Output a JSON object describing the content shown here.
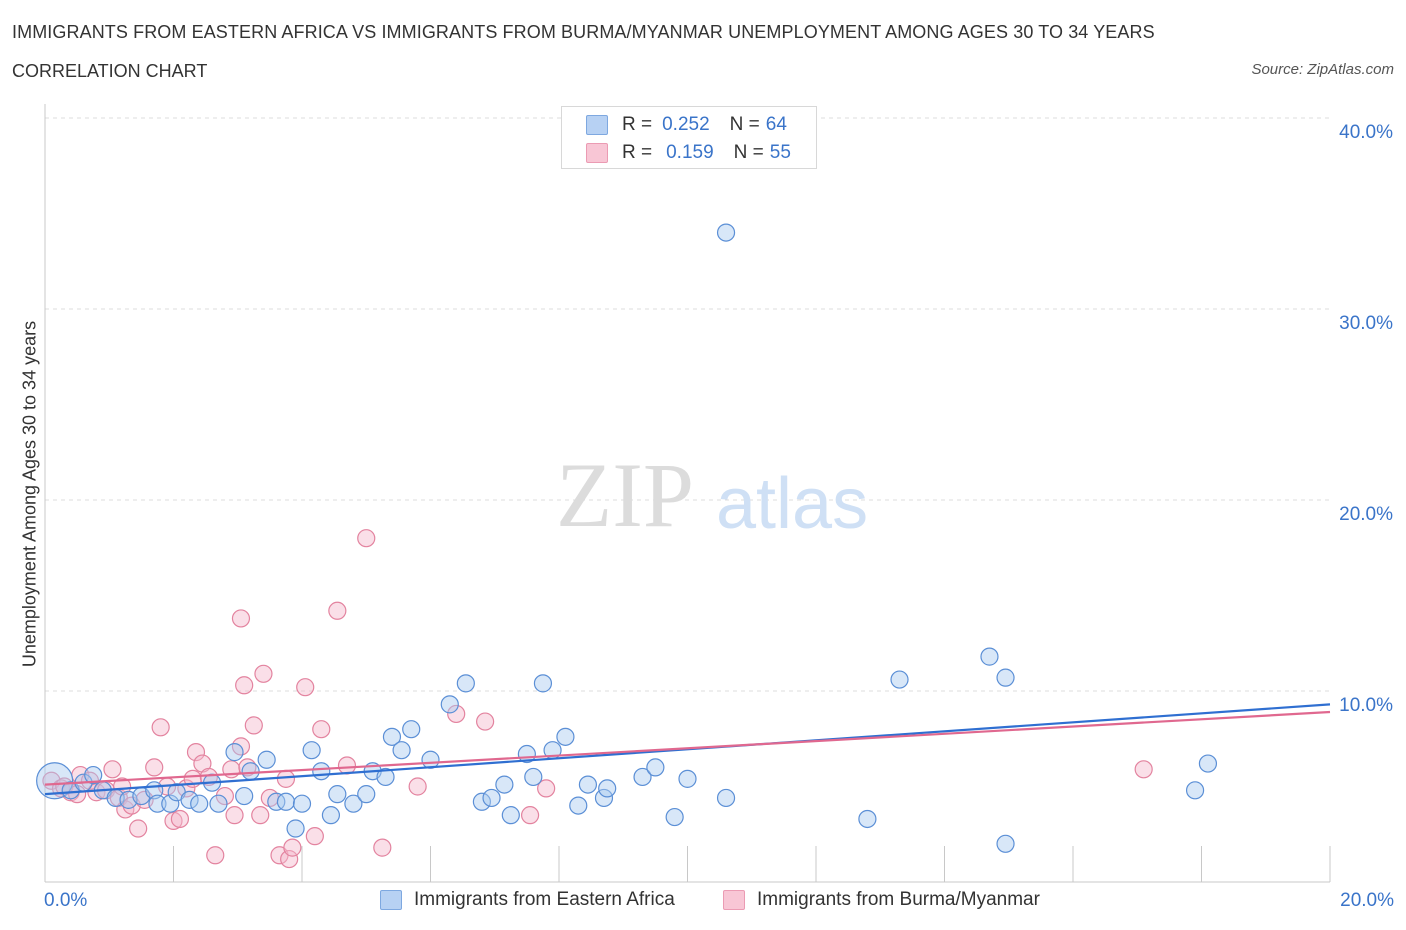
{
  "header": {
    "title": "IMMIGRANTS FROM EASTERN AFRICA VS IMMIGRANTS FROM BURMA/MYANMAR UNEMPLOYMENT AMONG AGES 30 TO 34 YEARS",
    "subtitle": "CORRELATION CHART",
    "source": "Source: ZipAtlas.com"
  },
  "watermark": {
    "zip": "ZIP",
    "atlas": "atlas"
  },
  "legend": {
    "r_label": "R =",
    "n_label": "N =",
    "rows": [
      {
        "r": "0.252",
        "n": "64"
      },
      {
        "r": "0.159",
        "n": "55"
      }
    ]
  },
  "colors": {
    "blue_fill": "#a9c9f0",
    "blue_stroke": "#5b8fd6",
    "blue_line": "#2f6fd1",
    "pink_fill": "#f5b8cb",
    "pink_stroke": "#e3839f",
    "pink_line": "#e0688f",
    "grid": "#dcdcdc",
    "axis_text": "#3a74c9"
  },
  "chart_data": {
    "type": "scatter",
    "title": "IMMIGRANTS FROM EASTERN AFRICA VS IMMIGRANTS FROM BURMA/MYANMAR UNEMPLOYMENT AMONG AGES 30 TO 34 YEARS",
    "xlabel": "",
    "ylabel": "Unemployment Among Ages 30 to 34 years",
    "xlim": [
      0,
      20
    ],
    "ylim": [
      0,
      40
    ],
    "x_tick_labels": [
      "0.0%",
      "20.0%"
    ],
    "y_ticks": [
      10,
      20,
      30,
      40
    ],
    "y_tick_labels": [
      "10.0%",
      "20.0%",
      "30.0%",
      "40.0%"
    ],
    "grid": true,
    "legend_position": "top-center",
    "series": [
      {
        "name": "Immigrants from Eastern Africa",
        "color": "blue",
        "trend": {
          "x0": 0,
          "y0": 4.6,
          "x1": 20,
          "y1": 9.3
        },
        "points": [
          {
            "x": 0.15,
            "y": 5.3,
            "big": true
          },
          {
            "x": 0.4,
            "y": 4.8
          },
          {
            "x": 0.6,
            "y": 5.2
          },
          {
            "x": 0.75,
            "y": 5.6
          },
          {
            "x": 0.9,
            "y": 4.8
          },
          {
            "x": 1.1,
            "y": 4.4
          },
          {
            "x": 1.3,
            "y": 4.3
          },
          {
            "x": 1.5,
            "y": 4.5
          },
          {
            "x": 1.7,
            "y": 4.8
          },
          {
            "x": 1.75,
            "y": 4.1
          },
          {
            "x": 1.95,
            "y": 4.1
          },
          {
            "x": 2.05,
            "y": 4.7
          },
          {
            "x": 2.25,
            "y": 4.3
          },
          {
            "x": 2.4,
            "y": 4.1
          },
          {
            "x": 2.6,
            "y": 5.2
          },
          {
            "x": 2.7,
            "y": 4.1
          },
          {
            "x": 2.95,
            "y": 6.8
          },
          {
            "x": 3.1,
            "y": 4.5
          },
          {
            "x": 3.2,
            "y": 5.8
          },
          {
            "x": 3.45,
            "y": 6.4
          },
          {
            "x": 3.6,
            "y": 4.2
          },
          {
            "x": 3.75,
            "y": 4.2
          },
          {
            "x": 3.9,
            "y": 2.8
          },
          {
            "x": 4.0,
            "y": 4.1
          },
          {
            "x": 4.15,
            "y": 6.9
          },
          {
            "x": 4.3,
            "y": 5.8
          },
          {
            "x": 4.45,
            "y": 3.5
          },
          {
            "x": 4.55,
            "y": 4.6
          },
          {
            "x": 4.8,
            "y": 4.1
          },
          {
            "x": 5.0,
            "y": 4.6
          },
          {
            "x": 5.1,
            "y": 5.8
          },
          {
            "x": 5.3,
            "y": 5.5
          },
          {
            "x": 5.4,
            "y": 7.6
          },
          {
            "x": 5.55,
            "y": 6.9
          },
          {
            "x": 5.7,
            "y": 8.0
          },
          {
            "x": 6.0,
            "y": 6.4
          },
          {
            "x": 6.3,
            "y": 9.3
          },
          {
            "x": 6.55,
            "y": 10.4
          },
          {
            "x": 6.8,
            "y": 4.2
          },
          {
            "x": 6.95,
            "y": 4.4
          },
          {
            "x": 7.15,
            "y": 5.1
          },
          {
            "x": 7.25,
            "y": 3.5
          },
          {
            "x": 7.5,
            "y": 6.7
          },
          {
            "x": 7.6,
            "y": 5.5
          },
          {
            "x": 7.75,
            "y": 10.4
          },
          {
            "x": 7.9,
            "y": 6.9
          },
          {
            "x": 8.1,
            "y": 7.6
          },
          {
            "x": 8.3,
            "y": 4.0
          },
          {
            "x": 8.45,
            "y": 5.1
          },
          {
            "x": 8.7,
            "y": 4.4
          },
          {
            "x": 8.75,
            "y": 4.9
          },
          {
            "x": 9.3,
            "y": 5.5
          },
          {
            "x": 9.5,
            "y": 6.0
          },
          {
            "x": 9.8,
            "y": 3.4
          },
          {
            "x": 10.0,
            "y": 5.4
          },
          {
            "x": 10.6,
            "y": 4.4
          },
          {
            "x": 10.6,
            "y": 34.0
          },
          {
            "x": 12.8,
            "y": 3.3
          },
          {
            "x": 13.3,
            "y": 10.6
          },
          {
            "x": 14.7,
            "y": 11.8
          },
          {
            "x": 14.95,
            "y": 10.7
          },
          {
            "x": 14.95,
            "y": 2.0
          },
          {
            "x": 17.9,
            "y": 4.8
          },
          {
            "x": 18.1,
            "y": 6.2
          }
        ]
      },
      {
        "name": "Immigrants from Burma/Myanmar",
        "color": "pink",
        "trend": {
          "x0": 0,
          "y0": 5.1,
          "x1": 20,
          "y1": 8.9
        },
        "points": [
          {
            "x": 0.1,
            "y": 5.3
          },
          {
            "x": 0.25,
            "y": 4.9
          },
          {
            "x": 0.4,
            "y": 4.7
          },
          {
            "x": 0.55,
            "y": 5.6
          },
          {
            "x": 0.7,
            "y": 5.3
          },
          {
            "x": 0.8,
            "y": 4.7
          },
          {
            "x": 0.95,
            "y": 4.8
          },
          {
            "x": 1.05,
            "y": 5.9
          },
          {
            "x": 1.15,
            "y": 4.4
          },
          {
            "x": 1.2,
            "y": 5.0
          },
          {
            "x": 1.25,
            "y": 3.8
          },
          {
            "x": 1.35,
            "y": 4.0
          },
          {
            "x": 1.45,
            "y": 2.8
          },
          {
            "x": 1.55,
            "y": 4.3
          },
          {
            "x": 1.7,
            "y": 6.0
          },
          {
            "x": 1.8,
            "y": 8.1
          },
          {
            "x": 1.9,
            "y": 5.0
          },
          {
            "x": 2.0,
            "y": 3.2
          },
          {
            "x": 2.1,
            "y": 3.3
          },
          {
            "x": 2.2,
            "y": 4.9
          },
          {
            "x": 2.3,
            "y": 5.4
          },
          {
            "x": 2.35,
            "y": 6.8
          },
          {
            "x": 2.45,
            "y": 6.2
          },
          {
            "x": 2.55,
            "y": 5.5
          },
          {
            "x": 2.65,
            "y": 1.4
          },
          {
            "x": 2.8,
            "y": 4.5
          },
          {
            "x": 2.9,
            "y": 5.9
          },
          {
            "x": 2.95,
            "y": 3.5
          },
          {
            "x": 3.05,
            "y": 7.1
          },
          {
            "x": 3.15,
            "y": 6.0
          },
          {
            "x": 3.05,
            "y": 13.8
          },
          {
            "x": 3.1,
            "y": 10.3
          },
          {
            "x": 3.25,
            "y": 8.2
          },
          {
            "x": 3.35,
            "y": 3.5
          },
          {
            "x": 3.4,
            "y": 10.9
          },
          {
            "x": 3.5,
            "y": 4.4
          },
          {
            "x": 3.65,
            "y": 1.4
          },
          {
            "x": 3.75,
            "y": 5.4
          },
          {
            "x": 3.8,
            "y": 1.2
          },
          {
            "x": 3.85,
            "y": 1.8
          },
          {
            "x": 4.05,
            "y": 10.2
          },
          {
            "x": 4.2,
            "y": 2.4
          },
          {
            "x": 4.3,
            "y": 8.0
          },
          {
            "x": 4.55,
            "y": 14.2
          },
          {
            "x": 4.7,
            "y": 6.1
          },
          {
            "x": 5.0,
            "y": 18.0
          },
          {
            "x": 5.25,
            "y": 1.8
          },
          {
            "x": 5.8,
            "y": 5.0
          },
          {
            "x": 6.4,
            "y": 8.8
          },
          {
            "x": 6.85,
            "y": 8.4
          },
          {
            "x": 7.55,
            "y": 3.5
          },
          {
            "x": 7.8,
            "y": 4.9
          },
          {
            "x": 17.1,
            "y": 5.9
          },
          {
            "x": 0.3,
            "y": 5.0
          },
          {
            "x": 0.5,
            "y": 4.6
          }
        ]
      }
    ]
  },
  "bottom_legend": {
    "items": [
      "Immigrants from Eastern Africa",
      "Immigrants from Burma/Myanmar"
    ]
  }
}
